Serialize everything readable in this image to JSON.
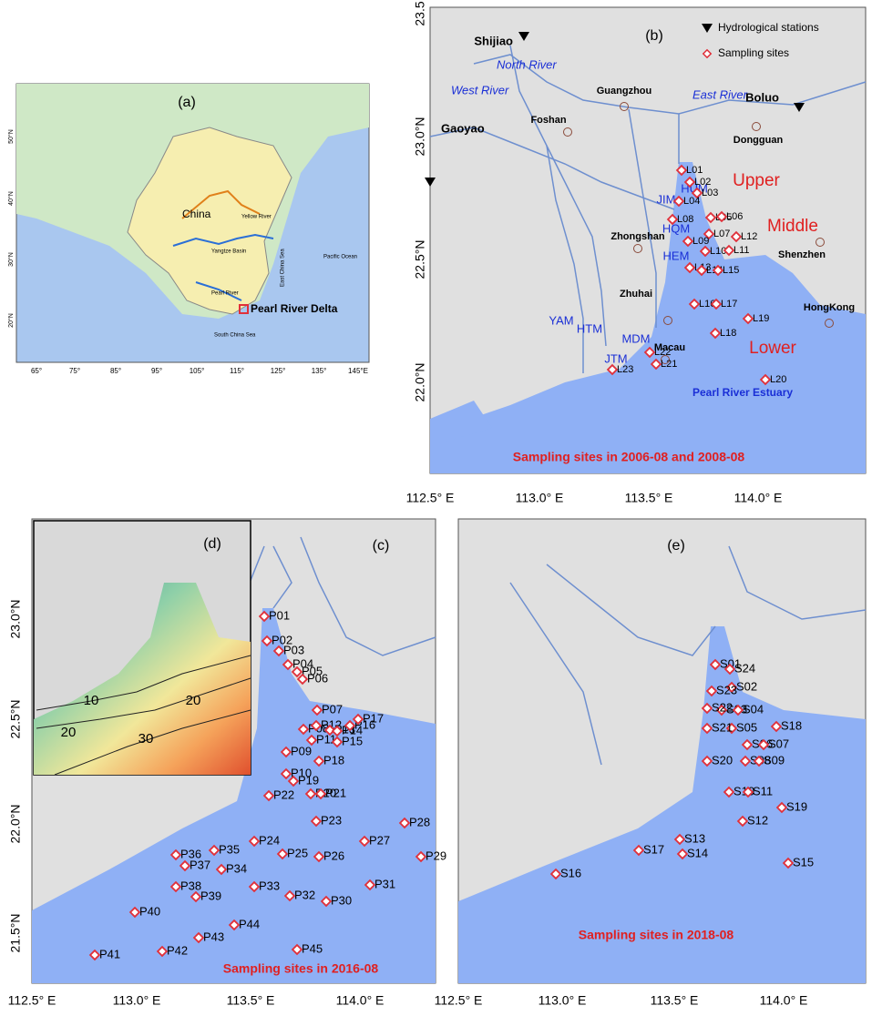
{
  "panel_a": {
    "label": "(a)",
    "country": "China",
    "rivers": [
      "Yellow River",
      "Yangtze Basin",
      "Pearl River"
    ],
    "seas": [
      "East China Sea",
      "Pacific Ocean",
      "South China Sea"
    ],
    "study_area": "Pearl River Delta",
    "lat_labels": [
      "50°N",
      "40°N",
      "30°N",
      "20°N"
    ],
    "lon_labels": [
      "65°",
      "75°",
      "85°",
      "95°",
      "105°",
      "115°",
      "125°",
      "135°",
      "145°E"
    ]
  },
  "panel_b": {
    "label": "(b)",
    "legend": [
      "Hydrological stations",
      "Sampling sites"
    ],
    "stations": [
      "Shijiao",
      "Gaoyao",
      "Boluo"
    ],
    "rivers": [
      "North River",
      "West River",
      "East River"
    ],
    "cities": [
      "Guangzhou",
      "Foshan",
      "Dongguan",
      "Zhongshan",
      "Shenzhen",
      "Zhuhai",
      "Macau",
      "HongKong"
    ],
    "zones": [
      "Upper",
      "Middle",
      "Lower"
    ],
    "outlets": [
      "HUM",
      "JIM",
      "HQM",
      "HEM",
      "YAM",
      "HTM",
      "MDM",
      "JTM"
    ],
    "estuary": "Pearl River Estuary",
    "sites": [
      "L01",
      "L02",
      "L03",
      "L04",
      "L05",
      "L06",
      "L07",
      "L08",
      "L09",
      "L10",
      "L11",
      "L12",
      "L13",
      "L14",
      "L15",
      "L16",
      "L17",
      "L18",
      "L19",
      "L20",
      "L21",
      "L22",
      "L23"
    ],
    "caption": "Sampling sites in 2006-08 and 2008-08",
    "lat_labels": [
      "23.5",
      "23.0°N",
      "22.5°N",
      "22.0°N"
    ],
    "lon_labels": [
      "112.5° E",
      "113.0° E",
      "113.5° E",
      "114.0° E"
    ]
  },
  "panel_c": {
    "label": "(c)",
    "sites": [
      "P01",
      "P02",
      "P03",
      "P04",
      "P05",
      "P06",
      "P07",
      "P08",
      "P09",
      "P10",
      "P11",
      "P12",
      "P13",
      "P14",
      "P15",
      "P16",
      "P17",
      "P18",
      "P19",
      "P20",
      "P21",
      "P22",
      "P23",
      "P24",
      "P25",
      "P26",
      "P27",
      "P28",
      "P29",
      "P30",
      "P31",
      "P32",
      "P33",
      "P34",
      "P35",
      "P36",
      "P37",
      "P38",
      "P39",
      "P40",
      "P41",
      "P42",
      "P43",
      "P44",
      "P45"
    ],
    "caption": "Sampling sites in 2016-08",
    "lat_labels": [
      "23.0°N",
      "22.5°N",
      "22.0°N",
      "21.5°N"
    ],
    "lon_labels": [
      "112.5° E",
      "113.0° E",
      "113.5° E",
      "114.0° E"
    ]
  },
  "panel_d": {
    "label": "(d)",
    "contour_labels": [
      "10",
      "20",
      "20",
      "30"
    ]
  },
  "panel_e": {
    "label": "(e)",
    "sites": [
      "S01",
      "S02",
      "S03",
      "S04",
      "S05",
      "S06",
      "S07",
      "S08",
      "S09",
      "S10",
      "S11",
      "S12",
      "S13",
      "S14",
      "S15",
      "S16",
      "S17",
      "S18",
      "S19",
      "S20",
      "S21",
      "S22",
      "S23",
      "S24"
    ],
    "caption": "Sampling sites in 2018-08",
    "lon_labels": [
      "112.5° E",
      "113.0° E",
      "113.5° E",
      "114.0° E"
    ]
  }
}
